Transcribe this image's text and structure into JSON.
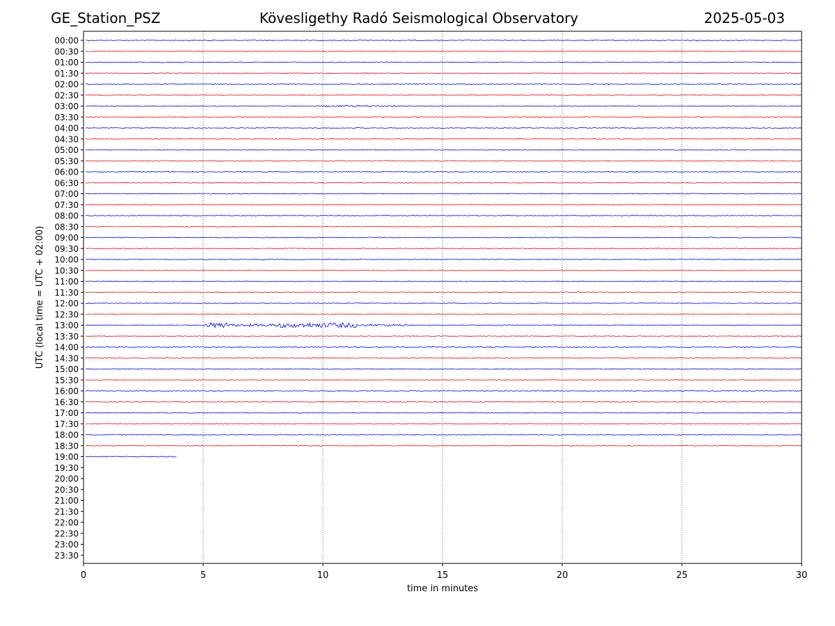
{
  "header": {
    "station": "GE_Station_PSZ",
    "observatory": "Kövesligethy Radó Seismological Observatory",
    "date": "2025-05-03"
  },
  "chart_data": {
    "type": "line",
    "title": "Kövesligethy Radó Seismological Observatory",
    "xlabel": "time in minutes",
    "ylabel": "UTC (local time = UTC + 02:00)",
    "xlim": [
      0,
      30
    ],
    "xticks": [
      0,
      5,
      10,
      15,
      20,
      25,
      30
    ],
    "vertical_gridlines": [
      5,
      10,
      15,
      20,
      25
    ],
    "row_labels": [
      "00:00",
      "00:30",
      "01:00",
      "01:30",
      "02:00",
      "02:30",
      "03:00",
      "03:30",
      "04:00",
      "04:30",
      "05:00",
      "05:30",
      "06:00",
      "06:30",
      "07:00",
      "07:30",
      "08:00",
      "08:30",
      "09:00",
      "09:30",
      "10:00",
      "10:30",
      "11:00",
      "11:30",
      "12:00",
      "12:30",
      "13:00",
      "13:30",
      "14:00",
      "14:30",
      "15:00",
      "15:30",
      "16:00",
      "16:30",
      "17:00",
      "17:30",
      "18:00",
      "18:30",
      "19:00",
      "19:30",
      "20:00",
      "20:30",
      "21:00",
      "21:30",
      "22:00",
      "22:30",
      "23:00",
      "23:30"
    ],
    "trace_colors": [
      "#0000ff",
      "#ff0000"
    ],
    "traces": [
      {
        "row": "00:00",
        "end_minute": 30
      },
      {
        "row": "00:30",
        "end_minute": 30
      },
      {
        "row": "01:00",
        "end_minute": 30
      },
      {
        "row": "01:30",
        "end_minute": 30
      },
      {
        "row": "02:00",
        "end_minute": 30
      },
      {
        "row": "02:30",
        "end_minute": 30
      },
      {
        "row": "03:00",
        "end_minute": 30,
        "events": [
          {
            "start": 10,
            "end": 13,
            "amplitude": 1.2
          }
        ]
      },
      {
        "row": "03:30",
        "end_minute": 30
      },
      {
        "row": "04:00",
        "end_minute": 30
      },
      {
        "row": "04:30",
        "end_minute": 30
      },
      {
        "row": "05:00",
        "end_minute": 30
      },
      {
        "row": "05:30",
        "end_minute": 30
      },
      {
        "row": "06:00",
        "end_minute": 30
      },
      {
        "row": "06:30",
        "end_minute": 30
      },
      {
        "row": "07:00",
        "end_minute": 30
      },
      {
        "row": "07:30",
        "end_minute": 30
      },
      {
        "row": "08:00",
        "end_minute": 30
      },
      {
        "row": "08:30",
        "end_minute": 30
      },
      {
        "row": "09:00",
        "end_minute": 30
      },
      {
        "row": "09:30",
        "end_minute": 30
      },
      {
        "row": "10:00",
        "end_minute": 30
      },
      {
        "row": "10:30",
        "end_minute": 30
      },
      {
        "row": "11:00",
        "end_minute": 30
      },
      {
        "row": "11:30",
        "end_minute": 30
      },
      {
        "row": "12:00",
        "end_minute": 30
      },
      {
        "row": "12:30",
        "end_minute": 30
      },
      {
        "row": "13:00",
        "end_minute": 30,
        "events": [
          {
            "start": 5.0,
            "end": 6.0,
            "amplitude": 4
          },
          {
            "start": 6.0,
            "end": 8.0,
            "amplitude": 2
          },
          {
            "start": 8.0,
            "end": 11.5,
            "amplitude": 3.5
          },
          {
            "start": 11.5,
            "end": 13.5,
            "amplitude": 1.6
          }
        ]
      },
      {
        "row": "13:30",
        "end_minute": 30
      },
      {
        "row": "14:00",
        "end_minute": 30
      },
      {
        "row": "14:30",
        "end_minute": 30
      },
      {
        "row": "15:00",
        "end_minute": 30
      },
      {
        "row": "15:30",
        "end_minute": 30
      },
      {
        "row": "16:00",
        "end_minute": 30
      },
      {
        "row": "16:30",
        "end_minute": 30
      },
      {
        "row": "17:00",
        "end_minute": 30
      },
      {
        "row": "17:30",
        "end_minute": 30
      },
      {
        "row": "18:00",
        "end_minute": 30
      },
      {
        "row": "18:30",
        "end_minute": 30
      },
      {
        "row": "19:00",
        "end_minute": 3.9
      }
    ]
  }
}
